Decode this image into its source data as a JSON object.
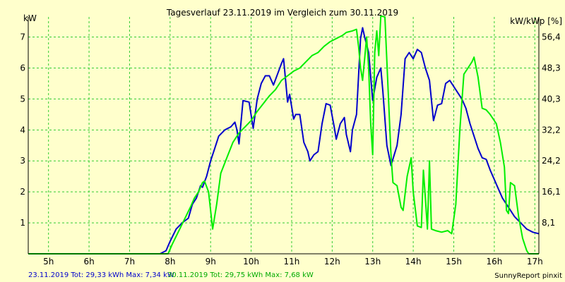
{
  "chart_data": {
    "type": "line",
    "title": "Tagesverlauf 23.11.2019 im Vergleich zum 30.11.2019",
    "ylabel_left": "kW",
    "ylabel_right": "kW/kWp [%]",
    "x_ticks": [
      "5h",
      "6h",
      "7h",
      "8h",
      "9h",
      "10h",
      "11h",
      "12h",
      "13h",
      "14h",
      "15h",
      "16h",
      "17h"
    ],
    "y_ticks_left": [
      "1",
      "2",
      "3",
      "4",
      "5",
      "6",
      "7"
    ],
    "y_ticks_right": [
      "8,1",
      "16,1",
      "24,2",
      "32,2",
      "40,3",
      "48,3",
      "56,4"
    ],
    "xlim": [
      4.5,
      17.1
    ],
    "ylim": [
      0,
      7.65
    ],
    "grid": true,
    "colors": {
      "background": "#FFFFCC",
      "grid": "#33CC33",
      "series1": "#0000CC",
      "series2": "#00EE00"
    },
    "series": [
      {
        "name": "23.11.2019",
        "color": "#0000CC",
        "points": [
          [
            4.5,
            0
          ],
          [
            7.75,
            0
          ],
          [
            7.9,
            0.1
          ],
          [
            8.0,
            0.4
          ],
          [
            8.15,
            0.8
          ],
          [
            8.3,
            1.0
          ],
          [
            8.45,
            1.15
          ],
          [
            8.55,
            1.6
          ],
          [
            8.65,
            1.8
          ],
          [
            8.75,
            2.2
          ],
          [
            8.8,
            2.15
          ],
          [
            8.9,
            2.5
          ],
          [
            9.0,
            3.0
          ],
          [
            9.1,
            3.4
          ],
          [
            9.2,
            3.8
          ],
          [
            9.35,
            4.0
          ],
          [
            9.5,
            4.1
          ],
          [
            9.6,
            4.25
          ],
          [
            9.65,
            4.0
          ],
          [
            9.7,
            3.55
          ],
          [
            9.8,
            4.95
          ],
          [
            9.95,
            4.9
          ],
          [
            10.05,
            4.05
          ],
          [
            10.15,
            5.0
          ],
          [
            10.25,
            5.5
          ],
          [
            10.35,
            5.75
          ],
          [
            10.45,
            5.75
          ],
          [
            10.55,
            5.45
          ],
          [
            10.65,
            5.8
          ],
          [
            10.75,
            6.15
          ],
          [
            10.8,
            6.3
          ],
          [
            10.85,
            5.6
          ],
          [
            10.9,
            4.9
          ],
          [
            10.95,
            5.15
          ],
          [
            11.05,
            4.35
          ],
          [
            11.1,
            4.5
          ],
          [
            11.2,
            4.5
          ],
          [
            11.3,
            3.6
          ],
          [
            11.4,
            3.3
          ],
          [
            11.45,
            3.0
          ],
          [
            11.55,
            3.2
          ],
          [
            11.65,
            3.3
          ],
          [
            11.75,
            4.2
          ],
          [
            11.85,
            4.85
          ],
          [
            11.95,
            4.8
          ],
          [
            12.05,
            4.1
          ],
          [
            12.1,
            3.7
          ],
          [
            12.2,
            4.2
          ],
          [
            12.3,
            4.4
          ],
          [
            12.35,
            3.85
          ],
          [
            12.45,
            3.3
          ],
          [
            12.5,
            4.0
          ],
          [
            12.6,
            4.5
          ],
          [
            12.7,
            6.95
          ],
          [
            12.75,
            7.3
          ],
          [
            12.8,
            7.0
          ],
          [
            12.9,
            6.5
          ],
          [
            13.0,
            4.95
          ],
          [
            13.1,
            5.7
          ],
          [
            13.2,
            6.0
          ],
          [
            13.25,
            5.25
          ],
          [
            13.35,
            3.5
          ],
          [
            13.45,
            2.85
          ],
          [
            13.6,
            3.5
          ],
          [
            13.7,
            4.5
          ],
          [
            13.8,
            6.3
          ],
          [
            13.9,
            6.5
          ],
          [
            14.0,
            6.3
          ],
          [
            14.1,
            6.6
          ],
          [
            14.2,
            6.5
          ],
          [
            14.3,
            6.0
          ],
          [
            14.4,
            5.6
          ],
          [
            14.5,
            4.3
          ],
          [
            14.6,
            4.8
          ],
          [
            14.7,
            4.85
          ],
          [
            14.8,
            5.5
          ],
          [
            14.9,
            5.6
          ],
          [
            15.0,
            5.4
          ],
          [
            15.1,
            5.2
          ],
          [
            15.2,
            5.0
          ],
          [
            15.3,
            4.7
          ],
          [
            15.4,
            4.2
          ],
          [
            15.5,
            3.8
          ],
          [
            15.6,
            3.4
          ],
          [
            15.7,
            3.1
          ],
          [
            15.8,
            3.05
          ],
          [
            15.9,
            2.7
          ],
          [
            16.0,
            2.4
          ],
          [
            16.1,
            2.1
          ],
          [
            16.2,
            1.8
          ],
          [
            16.35,
            1.5
          ],
          [
            16.5,
            1.2
          ],
          [
            16.65,
            1.0
          ],
          [
            16.8,
            0.8
          ],
          [
            16.95,
            0.7
          ],
          [
            17.1,
            0.65
          ]
        ]
      },
      {
        "name": "30.11.2019",
        "color": "#00EE00",
        "points": [
          [
            4.5,
            0
          ],
          [
            7.95,
            0
          ],
          [
            8.05,
            0.3
          ],
          [
            8.2,
            0.7
          ],
          [
            8.35,
            1.1
          ],
          [
            8.5,
            1.5
          ],
          [
            8.6,
            1.8
          ],
          [
            8.7,
            2.0
          ],
          [
            8.8,
            2.3
          ],
          [
            8.85,
            2.35
          ],
          [
            8.95,
            2.0
          ],
          [
            9.0,
            1.4
          ],
          [
            9.05,
            0.8
          ],
          [
            9.15,
            1.6
          ],
          [
            9.25,
            2.6
          ],
          [
            9.4,
            3.1
          ],
          [
            9.55,
            3.6
          ],
          [
            9.7,
            3.9
          ],
          [
            9.85,
            4.1
          ],
          [
            10.0,
            4.3
          ],
          [
            10.15,
            4.6
          ],
          [
            10.3,
            4.85
          ],
          [
            10.45,
            5.1
          ],
          [
            10.6,
            5.3
          ],
          [
            10.75,
            5.6
          ],
          [
            10.9,
            5.75
          ],
          [
            11.05,
            5.9
          ],
          [
            11.2,
            6.0
          ],
          [
            11.35,
            6.2
          ],
          [
            11.5,
            6.4
          ],
          [
            11.65,
            6.5
          ],
          [
            11.8,
            6.7
          ],
          [
            11.95,
            6.85
          ],
          [
            12.1,
            6.95
          ],
          [
            12.25,
            7.05
          ],
          [
            12.35,
            7.15
          ],
          [
            12.5,
            7.2
          ],
          [
            12.6,
            7.25
          ],
          [
            12.65,
            6.7
          ],
          [
            12.7,
            6.0
          ],
          [
            12.75,
            5.6
          ],
          [
            12.8,
            6.3
          ],
          [
            12.85,
            7.0
          ],
          [
            12.9,
            6.0
          ],
          [
            12.95,
            4.2
          ],
          [
            13.0,
            3.2
          ],
          [
            13.05,
            6.5
          ],
          [
            13.1,
            7.2
          ],
          [
            13.15,
            6.4
          ],
          [
            13.2,
            7.68
          ],
          [
            13.3,
            7.65
          ],
          [
            13.35,
            6.2
          ],
          [
            13.45,
            3.2
          ],
          [
            13.5,
            2.3
          ],
          [
            13.6,
            2.2
          ],
          [
            13.7,
            1.5
          ],
          [
            13.75,
            1.4
          ],
          [
            13.85,
            2.5
          ],
          [
            13.95,
            3.1
          ],
          [
            14.0,
            2.0
          ],
          [
            14.1,
            0.9
          ],
          [
            14.2,
            0.85
          ],
          [
            14.25,
            2.7
          ],
          [
            14.3,
            1.8
          ],
          [
            14.35,
            0.8
          ],
          [
            14.4,
            3.0
          ],
          [
            14.45,
            0.8
          ],
          [
            14.55,
            0.75
          ],
          [
            14.7,
            0.7
          ],
          [
            14.85,
            0.75
          ],
          [
            14.95,
            0.65
          ],
          [
            15.05,
            1.6
          ],
          [
            15.15,
            4.0
          ],
          [
            15.25,
            5.8
          ],
          [
            15.35,
            6.0
          ],
          [
            15.45,
            6.2
          ],
          [
            15.5,
            6.35
          ],
          [
            15.6,
            5.7
          ],
          [
            15.7,
            4.7
          ],
          [
            15.8,
            4.65
          ],
          [
            15.9,
            4.5
          ],
          [
            16.05,
            4.2
          ],
          [
            16.15,
            3.6
          ],
          [
            16.25,
            2.8
          ],
          [
            16.3,
            1.4
          ],
          [
            16.35,
            1.3
          ],
          [
            16.4,
            2.3
          ],
          [
            16.5,
            2.2
          ],
          [
            16.6,
            1.2
          ],
          [
            16.7,
            0.5
          ],
          [
            16.75,
            0.3
          ],
          [
            16.8,
            0.1
          ],
          [
            16.85,
            0
          ],
          [
            17.1,
            0
          ]
        ]
      }
    ]
  },
  "footer": {
    "series1_summary": "23.11.2019 Tot: 29,33 kWh Max: 7,34 kW",
    "series2_summary": "30.11.2019 Tot: 29,75 kWh Max: 7,68 kW",
    "credit": "SunnyReport pinxit"
  }
}
